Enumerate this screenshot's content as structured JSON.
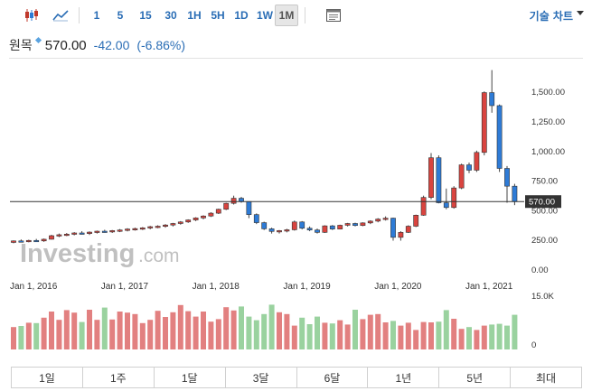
{
  "toolbar": {
    "icons": [
      "candlestick-chart-icon",
      "line-chart-icon",
      "chart-settings-icon"
    ],
    "intervals": [
      "1",
      "5",
      "15",
      "30",
      "1H",
      "5H",
      "1D",
      "1W",
      "1M"
    ],
    "active_interval": "1M",
    "chart_type_label": "기술 차트"
  },
  "quote": {
    "name": "원목",
    "price": "570.00",
    "change": "-42.00",
    "change_pct": "(-6.86%)",
    "change_color": "#2a6db5"
  },
  "watermark": {
    "brand": "Investing",
    "suffix": ".com"
  },
  "range_tabs": [
    "1일",
    "1주",
    "1달",
    "3달",
    "6달",
    "1년",
    "5년",
    "최대"
  ],
  "colors": {
    "up": "#d9443f",
    "down": "#2e7bd6",
    "vol_up": "#e28080",
    "vol_down": "#9ad29f",
    "price_line": "#333333",
    "last_price_tag": "#333333"
  },
  "chart_data": {
    "type": "candlestick",
    "price_axis": {
      "ticks": [
        0,
        250,
        500,
        750,
        1000,
        1250,
        1500
      ],
      "tick_labels": [
        "0.00",
        "250.00",
        "500.00",
        "750.00",
        "1,000.00",
        "1,250.00",
        "1,500.00"
      ],
      "ylim": [
        0,
        1700
      ]
    },
    "volume_axis": {
      "tick_labels": [
        "15.0K",
        "0"
      ],
      "ylim": [
        0,
        15000
      ]
    },
    "x_tick_labels": [
      "Jan 1, 2016",
      "Jan 1, 2017",
      "Jan 1, 2018",
      "Jan 1, 2019",
      "Jan 1, 2020",
      "Jan 1, 2021"
    ],
    "x_tick_index": [
      0,
      12,
      24,
      36,
      48,
      60
    ],
    "last_price": 570,
    "last_price_label": "570.00",
    "candles": [
      [
        225,
        242,
        218,
        238
      ],
      [
        238,
        250,
        228,
        235
      ],
      [
        235,
        248,
        226,
        242
      ],
      [
        242,
        255,
        232,
        238
      ],
      [
        238,
        258,
        230,
        252
      ],
      [
        252,
        290,
        250,
        282
      ],
      [
        282,
        300,
        270,
        290
      ],
      [
        290,
        305,
        278,
        295
      ],
      [
        295,
        312,
        285,
        305
      ],
      [
        305,
        320,
        292,
        300
      ],
      [
        300,
        318,
        288,
        312
      ],
      [
        312,
        325,
        300,
        320
      ],
      [
        320,
        332,
        308,
        315
      ],
      [
        315,
        330,
        305,
        325
      ],
      [
        325,
        338,
        312,
        330
      ],
      [
        330,
        345,
        318,
        338
      ],
      [
        338,
        350,
        325,
        342
      ],
      [
        342,
        355,
        330,
        348
      ],
      [
        348,
        365,
        336,
        358
      ],
      [
        358,
        370,
        345,
        362
      ],
      [
        362,
        380,
        350,
        372
      ],
      [
        372,
        390,
        360,
        385
      ],
      [
        385,
        405,
        375,
        398
      ],
      [
        398,
        420,
        390,
        415
      ],
      [
        415,
        438,
        405,
        432
      ],
      [
        432,
        455,
        420,
        448
      ],
      [
        448,
        480,
        440,
        472
      ],
      [
        472,
        510,
        465,
        505
      ],
      [
        505,
        560,
        498,
        555
      ],
      [
        555,
        620,
        545,
        598
      ],
      [
        598,
        610,
        560,
        570
      ],
      [
        570,
        572,
        430,
        460
      ],
      [
        460,
        470,
        380,
        392
      ],
      [
        392,
        400,
        330,
        340
      ],
      [
        340,
        350,
        300,
        318
      ],
      [
        318,
        330,
        300,
        325
      ],
      [
        325,
        340,
        310,
        332
      ],
      [
        332,
        410,
        325,
        398
      ],
      [
        398,
        405,
        335,
        345
      ],
      [
        345,
        360,
        320,
        330
      ],
      [
        330,
        342,
        300,
        310
      ],
      [
        310,
        370,
        305,
        365
      ],
      [
        365,
        372,
        330,
        338
      ],
      [
        338,
        375,
        335,
        370
      ],
      [
        370,
        390,
        360,
        385
      ],
      [
        385,
        392,
        360,
        368
      ],
      [
        368,
        395,
        362,
        390
      ],
      [
        390,
        412,
        380,
        405
      ],
      [
        405,
        430,
        395,
        422
      ],
      [
        422,
        445,
        410,
        430
      ],
      [
        430,
        435,
        240,
        268
      ],
      [
        268,
        320,
        240,
        310
      ],
      [
        310,
        370,
        305,
        362
      ],
      [
        362,
        460,
        355,
        455
      ],
      [
        455,
        620,
        450,
        605
      ],
      [
        605,
        980,
        590,
        940
      ],
      [
        940,
        960,
        555,
        560
      ],
      [
        560,
        680,
        505,
        520
      ],
      [
        520,
        700,
        510,
        685
      ],
      [
        685,
        890,
        675,
        880
      ],
      [
        880,
        900,
        810,
        835
      ],
      [
        835,
        1000,
        820,
        985
      ],
      [
        985,
        1500,
        960,
        1490
      ],
      [
        1490,
        1680,
        1320,
        1380
      ],
      [
        1380,
        1390,
        820,
        850
      ],
      [
        850,
        870,
        560,
        700
      ],
      [
        700,
        720,
        540,
        570
      ]
    ],
    "volume": [
      6200,
      6500,
      7400,
      7300,
      8800,
      10500,
      8200,
      10900,
      10200,
      7600,
      11000,
      8200,
      11600,
      8300,
      10500,
      10200,
      9800,
      7300,
      8200,
      10700,
      9000,
      10300,
      12300,
      10600,
      9100,
      10500,
      7700,
      8400,
      11700,
      10800,
      11900,
      9100,
      8100,
      9800,
      12400,
      10300,
      9800,
      6600,
      8800,
      7000,
      9100,
      7400,
      7200,
      8100,
      6900,
      11000,
      8400,
      9600,
      9800,
      7500,
      7900,
      6600,
      7400,
      5400,
      7600,
      7500,
      7700,
      10900,
      8500,
      5700,
      6200,
      5400,
      6600,
      6900,
      7100,
      6600,
      9600
    ]
  }
}
